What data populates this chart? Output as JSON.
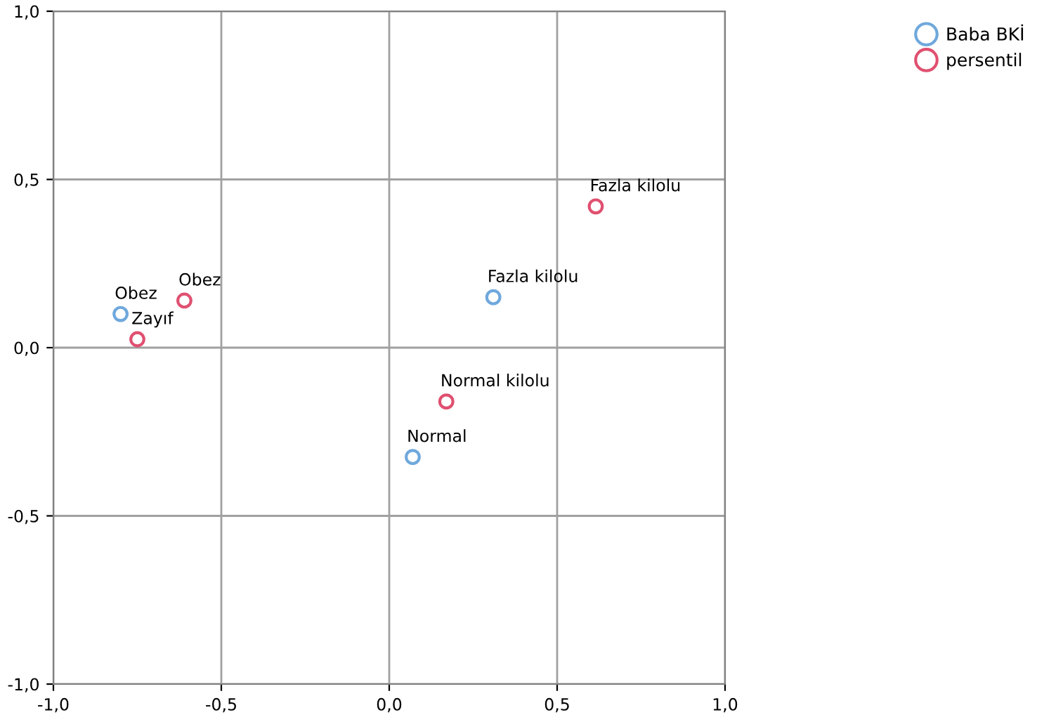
{
  "chart_data": {
    "type": "scatter",
    "marker": "circle",
    "grid": true,
    "legend": "top right",
    "xlim": [
      -1.0,
      1.0
    ],
    "ylim": [
      -1.0,
      1.0
    ],
    "xticks": [
      {
        "value": -1.0,
        "label": "-1,0"
      },
      {
        "value": -0.5,
        "label": "-0,5"
      },
      {
        "value": 0.0,
        "label": "0,0"
      },
      {
        "value": 0.5,
        "label": "0,5"
      },
      {
        "value": 1.0,
        "label": "1,0"
      }
    ],
    "yticks": [
      {
        "value": -1.0,
        "label": "-1,0"
      },
      {
        "value": -0.5,
        "label": "-0,5"
      },
      {
        "value": 0.0,
        "label": "0,0"
      },
      {
        "value": 0.5,
        "label": "0,5"
      },
      {
        "value": 1.0,
        "label": "1,0"
      }
    ],
    "series": [
      {
        "name": "Baba BKİ",
        "color": "#6fa8dc",
        "x": [
          -0.8,
          0.31,
          0.07
        ],
        "values": [
          0.1,
          0.15,
          -0.325
        ]
      },
      {
        "name": "persentil",
        "color": "#e05070",
        "x": [
          -0.61,
          -0.75,
          0.615,
          0.17
        ],
        "values": [
          0.14,
          0.025,
          0.42,
          -0.16
        ]
      }
    ],
    "annotations": [
      {
        "text": "Obez",
        "x": -0.8,
        "y": 0.1
      },
      {
        "text": "Fazla kilolu",
        "x": 0.31,
        "y": 0.15
      },
      {
        "text": "Normal",
        "x": 0.07,
        "y": -0.325
      },
      {
        "text": "Obez",
        "x": -0.61,
        "y": 0.14
      },
      {
        "text": "Zayıf",
        "x": -0.75,
        "y": 0.025
      },
      {
        "text": "Fazla kilolu",
        "x": 0.615,
        "y": 0.42
      },
      {
        "text": "Normal kilolu",
        "x": 0.17,
        "y": -0.16
      }
    ]
  }
}
